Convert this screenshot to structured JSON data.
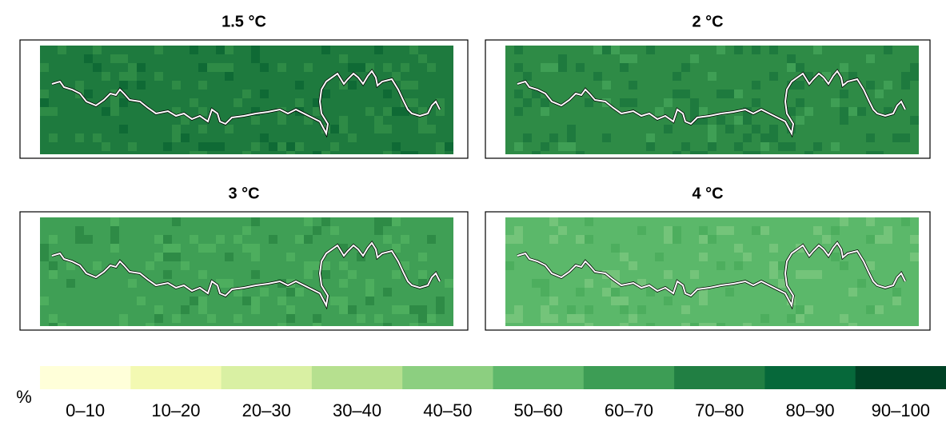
{
  "panels": [
    {
      "title": "1.5 °C"
    },
    {
      "title": "2 °C"
    },
    {
      "title": "3 °C"
    },
    {
      "title": "4 °C"
    }
  ],
  "legend": {
    "unit": "%",
    "items": [
      {
        "label": "0–10",
        "color": "#ffffd9"
      },
      {
        "label": "10–20",
        "color": "#f3f9b2"
      },
      {
        "label": "20–30",
        "color": "#d9f0a3"
      },
      {
        "label": "30–40",
        "color": "#b6e08f"
      },
      {
        "label": "40–50",
        "color": "#8ccf80"
      },
      {
        "label": "50–60",
        "color": "#5fb86b"
      },
      {
        "label": "60–70",
        "color": "#3d9d55"
      },
      {
        "label": "70–80",
        "color": "#217f43"
      },
      {
        "label": "80–90",
        "color": "#06683a"
      },
      {
        "label": "90–100",
        "color": "#004225"
      }
    ]
  }
}
